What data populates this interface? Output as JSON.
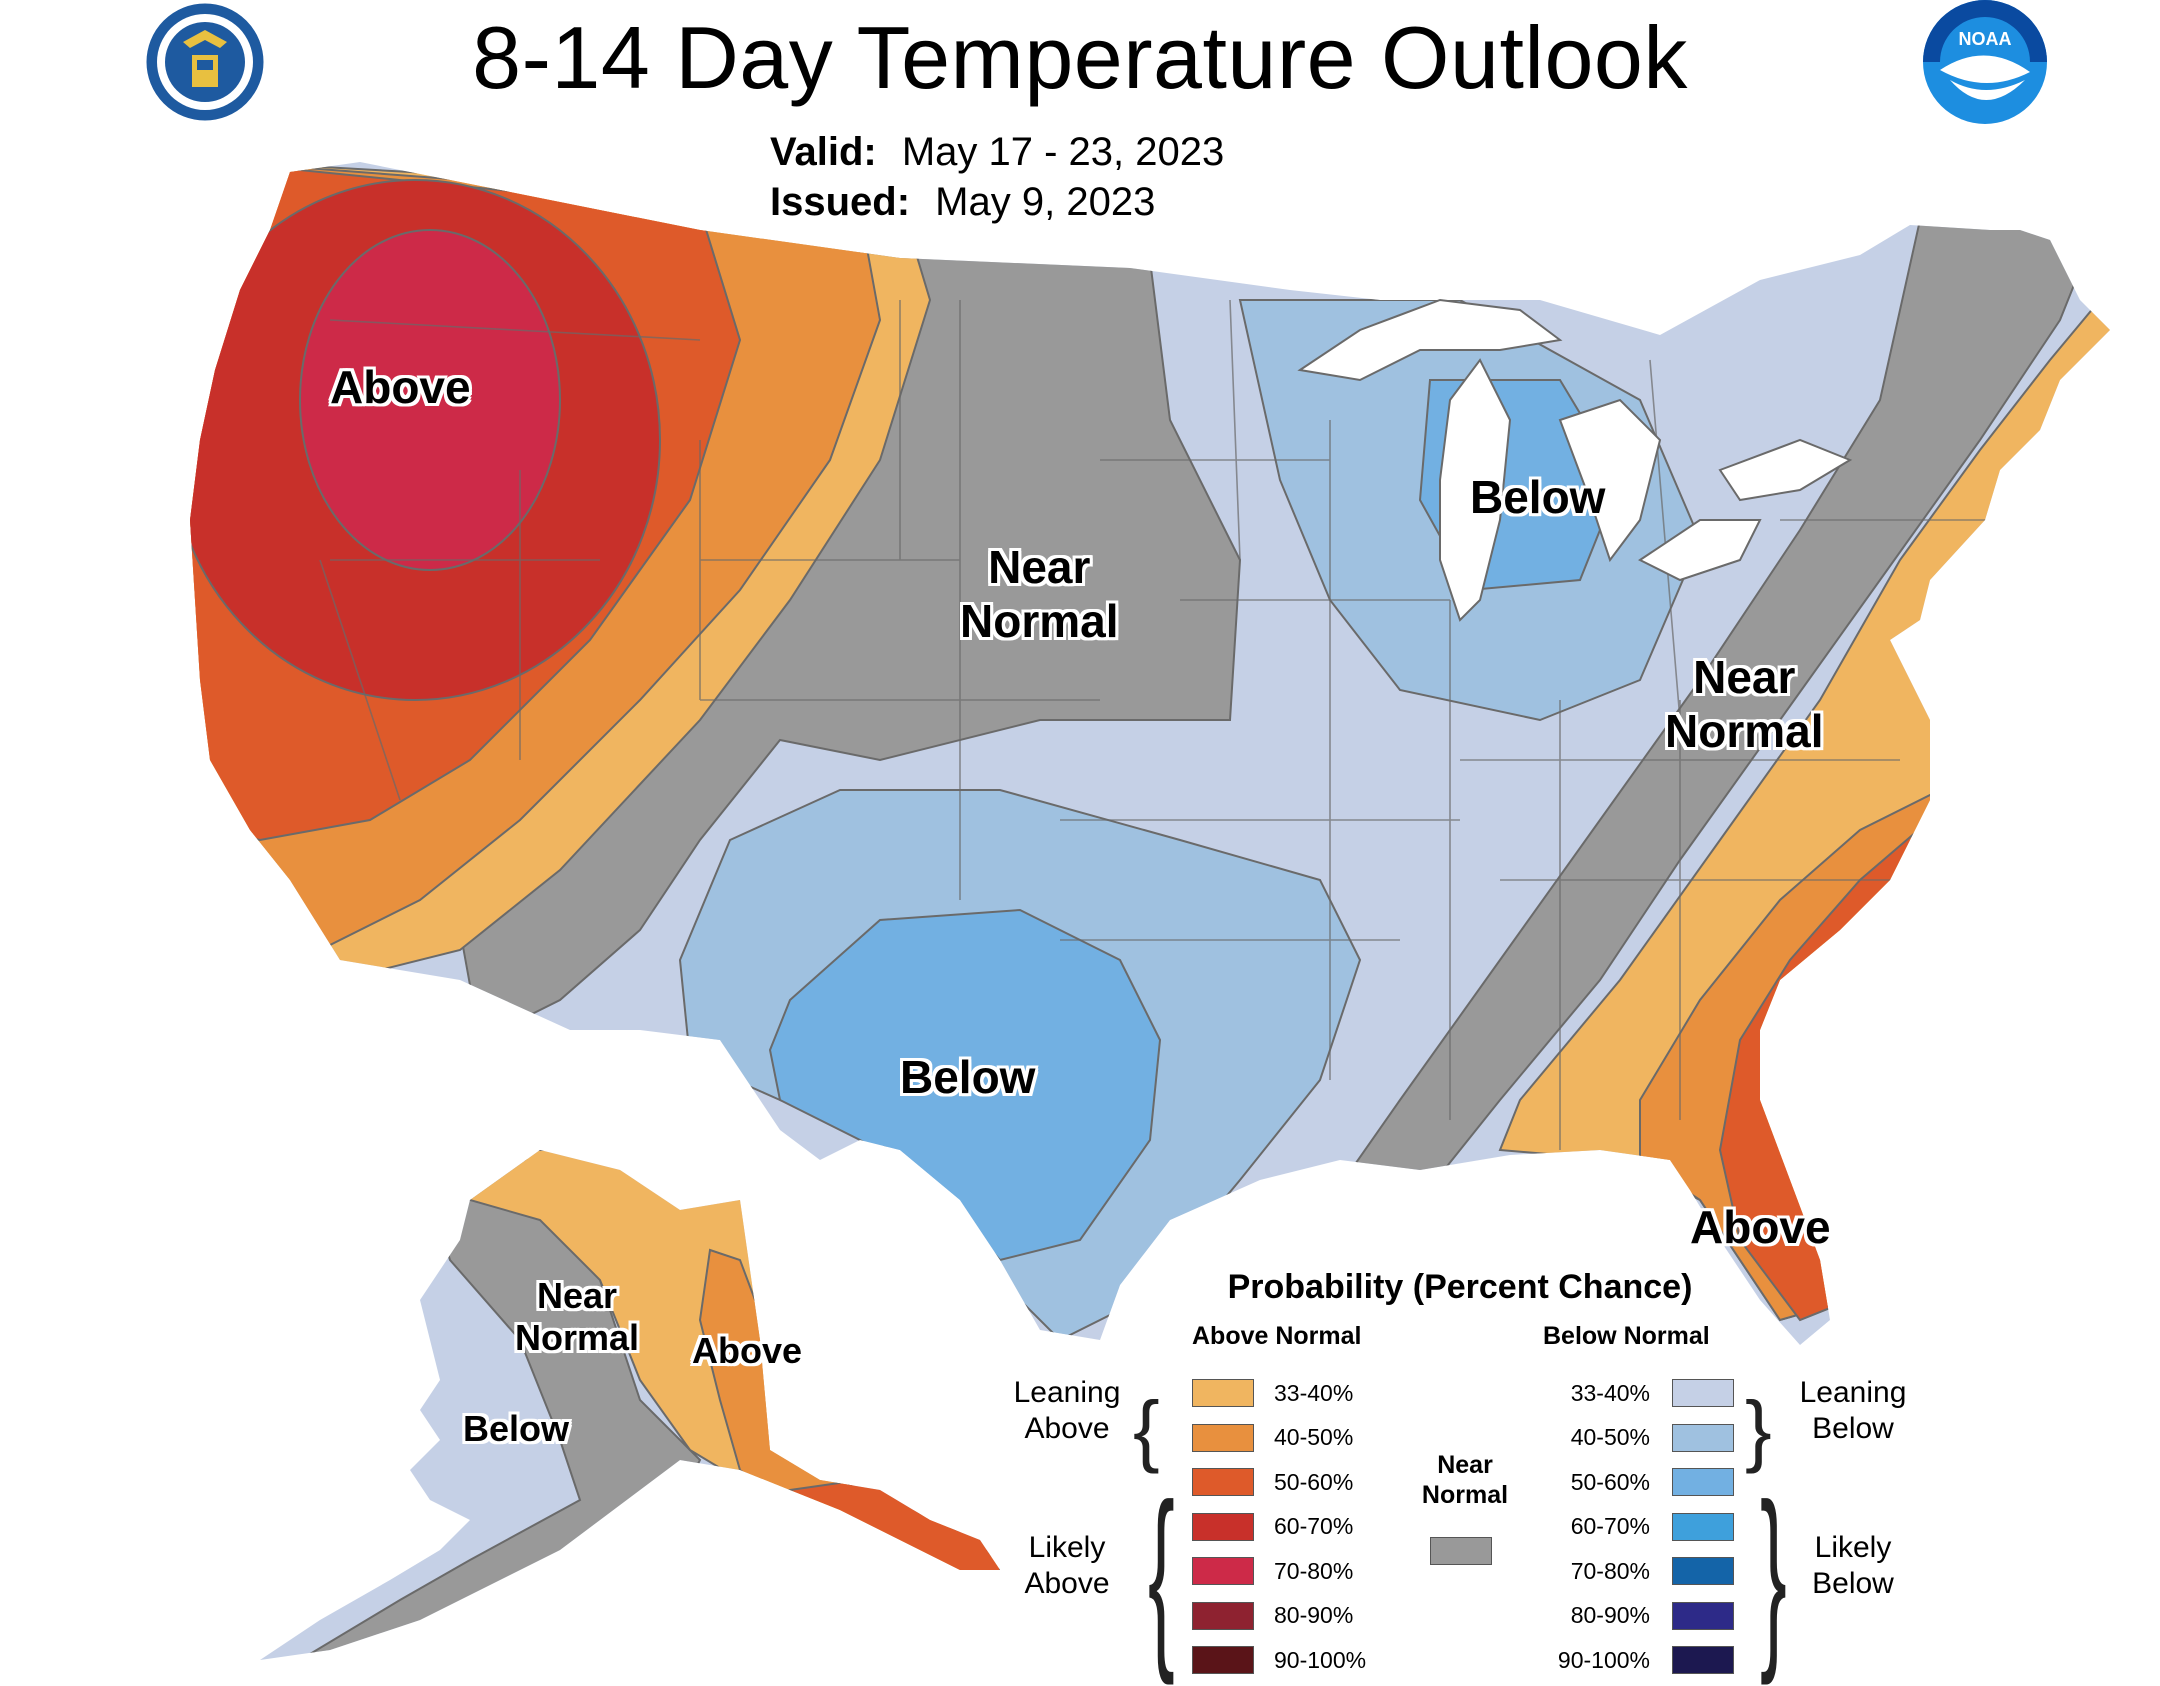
{
  "header": {
    "title": "8-14 Day Temperature Outlook",
    "valid_label": "Valid:",
    "valid_value": "May 17 - 23, 2023",
    "issued_label": "Issued:",
    "issued_value": "May 9, 2023",
    "left_logo": "commerce-seal-icon",
    "right_logo": "noaa-logo-icon"
  },
  "map_labels": {
    "above_northwest": "Above",
    "near_normal_plains": [
      "Near",
      "Normal"
    ],
    "below_great_lakes": "Below",
    "below_texas": "Below",
    "near_normal_appalachia": [
      "Near",
      "Normal"
    ],
    "above_florida": "Above",
    "alaska_near_normal": [
      "Near",
      "Normal"
    ],
    "alaska_above": "Above",
    "alaska_below": "Below"
  },
  "legend": {
    "title": "Probability (Percent Chance)",
    "above_header": "Above Normal",
    "below_header": "Below Normal",
    "near_normal_label": [
      "Near",
      "Normal"
    ],
    "leaning_above": [
      "Leaning",
      "Above"
    ],
    "likely_above": [
      "Likely",
      "Above"
    ],
    "leaning_below": [
      "Leaning",
      "Below"
    ],
    "likely_below": [
      "Likely",
      "Below"
    ],
    "above_bins": [
      {
        "range": "33-40%",
        "color": "#f0b560"
      },
      {
        "range": "40-50%",
        "color": "#e8903e"
      },
      {
        "range": "50-60%",
        "color": "#de5a2a"
      },
      {
        "range": "60-70%",
        "color": "#c8302a"
      },
      {
        "range": "70-80%",
        "color": "#cd2a48"
      },
      {
        "range": "80-90%",
        "color": "#8e2230"
      },
      {
        "range": "90-100%",
        "color": "#5a1418"
      }
    ],
    "below_bins": [
      {
        "range": "33-40%",
        "color": "#c5d0e6"
      },
      {
        "range": "40-50%",
        "color": "#9fc1e0"
      },
      {
        "range": "50-60%",
        "color": "#72b0e2"
      },
      {
        "range": "60-70%",
        "color": "#3ea0dc"
      },
      {
        "range": "70-80%",
        "color": "#1464a8"
      },
      {
        "range": "80-90%",
        "color": "#2d2a88"
      },
      {
        "range": "90-100%",
        "color": "#1c1850"
      }
    ],
    "near_normal_color": "#999999"
  }
}
